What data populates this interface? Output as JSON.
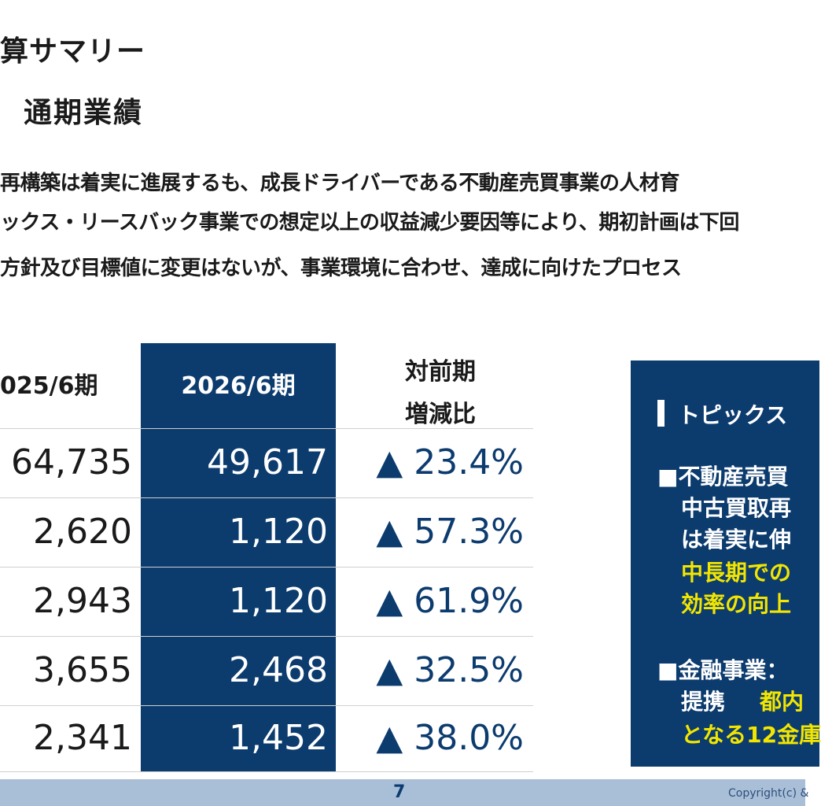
{
  "header": {
    "section_title": "算サマリー",
    "subtitle": "通期業績"
  },
  "summary": {
    "line1": "再構築は着実に進展するも、成長ドライバーである不動産売買事業の人材育",
    "line2": "ックス・リースバック事業での想定以上の収益減少要因等により、期初計画は下回",
    "line3": "方針及び目標値に変更はないが、事業環境に合わせ、達成に向けたプロセス"
  },
  "table": {
    "headers": {
      "prev": "025/6期",
      "current": "2026/6期",
      "yoy_line1": "対前期",
      "yoy_line2": "増減比"
    },
    "rows": [
      {
        "prev": "64,735",
        "current": "49,617",
        "yoy": "▲ 23.4%"
      },
      {
        "prev": "2,620",
        "current": "1,120",
        "yoy": "▲ 57.3%"
      },
      {
        "prev": "2,943",
        "current": "1,120",
        "yoy": "▲ 61.9%"
      },
      {
        "prev": "3,655",
        "current": "2,468",
        "yoy": "▲ 32.5%"
      },
      {
        "prev": "2,341",
        "current": "1,452",
        "yoy": "▲ 38.0%"
      }
    ]
  },
  "topics": {
    "title": "トピックス",
    "item1_line1": "■不動産売買",
    "item1_line2": "中古買取再",
    "item1_line3": "は着実に伸",
    "item1_line4": "中長期での",
    "item1_line5": "効率の向上",
    "item2_line1": "■金融事業：",
    "item2_line2a": "提携",
    "item2_line2b": "都内",
    "item2_line3": "となる12金庫"
  },
  "footer": {
    "page_number": "7",
    "copyright": "Copyright(c) &"
  },
  "colors": {
    "navy": "#0c3b6e",
    "yellow": "#f2e600",
    "footer_band": "#a9bfd8"
  }
}
